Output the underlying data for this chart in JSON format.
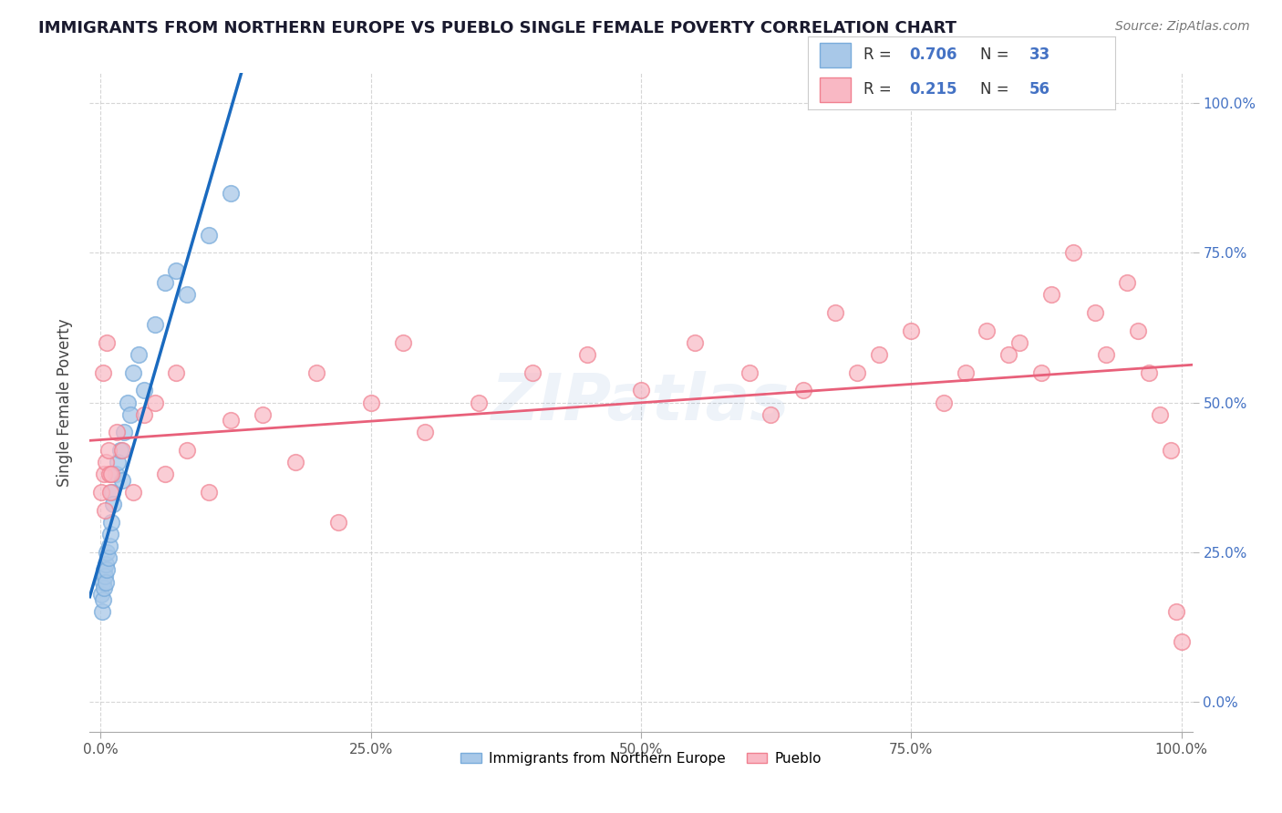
{
  "title": "IMMIGRANTS FROM NORTHERN EUROPE VS PUEBLO SINGLE FEMALE POVERTY CORRELATION CHART",
  "source": "Source: ZipAtlas.com",
  "ylabel": "Single Female Poverty",
  "legend_label1": "Immigrants from Northern Europe",
  "legend_label2": "Pueblo",
  "r1": "0.706",
  "n1": "33",
  "r2": "0.215",
  "n2": "56",
  "blue_color": "#a8c8e8",
  "blue_edge_color": "#7aacdb",
  "pink_color": "#f9b8c4",
  "pink_edge_color": "#f08090",
  "blue_line_color": "#1a6abf",
  "pink_line_color": "#e8607a",
  "watermark_color": "#5b8fc9",
  "blue_points_x": [
    0.1,
    0.15,
    0.2,
    0.25,
    0.3,
    0.35,
    0.4,
    0.45,
    0.5,
    0.55,
    0.6,
    0.7,
    0.8,
    0.9,
    1.0,
    1.1,
    1.2,
    1.4,
    1.6,
    1.8,
    2.0,
    2.2,
    2.5,
    2.8,
    3.0,
    3.5,
    4.0,
    5.0,
    6.0,
    7.0,
    8.0,
    10.0,
    12.0
  ],
  "blue_points_y": [
    18,
    15,
    20,
    17,
    22,
    19,
    21,
    20,
    23,
    25,
    22,
    24,
    26,
    28,
    30,
    35,
    33,
    38,
    40,
    42,
    37,
    45,
    50,
    48,
    55,
    58,
    52,
    63,
    70,
    72,
    68,
    78,
    85
  ],
  "pink_points_x": [
    0.1,
    0.2,
    0.3,
    0.4,
    0.5,
    0.6,
    0.7,
    0.8,
    0.9,
    1.0,
    1.5,
    2.0,
    3.0,
    4.0,
    5.0,
    6.0,
    7.0,
    8.0,
    10.0,
    12.0,
    15.0,
    18.0,
    20.0,
    22.0,
    25.0,
    28.0,
    30.0,
    35.0,
    40.0,
    45.0,
    50.0,
    55.0,
    60.0,
    62.0,
    65.0,
    68.0,
    70.0,
    72.0,
    75.0,
    78.0,
    80.0,
    82.0,
    84.0,
    85.0,
    87.0,
    88.0,
    90.0,
    92.0,
    93.0,
    95.0,
    96.0,
    97.0,
    98.0,
    99.0,
    99.5,
    100.0
  ],
  "pink_points_y": [
    35,
    55,
    38,
    32,
    40,
    60,
    42,
    38,
    35,
    38,
    45,
    42,
    35,
    48,
    50,
    38,
    55,
    42,
    35,
    47,
    48,
    40,
    55,
    30,
    50,
    60,
    45,
    50,
    55,
    58,
    52,
    60,
    55,
    48,
    52,
    65,
    55,
    58,
    62,
    50,
    55,
    62,
    58,
    60,
    55,
    68,
    75,
    65,
    58,
    70,
    62,
    55,
    48,
    42,
    15,
    10
  ],
  "xticks": [
    0,
    25,
    50,
    75,
    100
  ],
  "yticks_right": [
    0,
    25,
    50,
    75,
    100
  ],
  "xlim": [
    -1,
    101
  ],
  "ylim": [
    -5,
    105
  ]
}
